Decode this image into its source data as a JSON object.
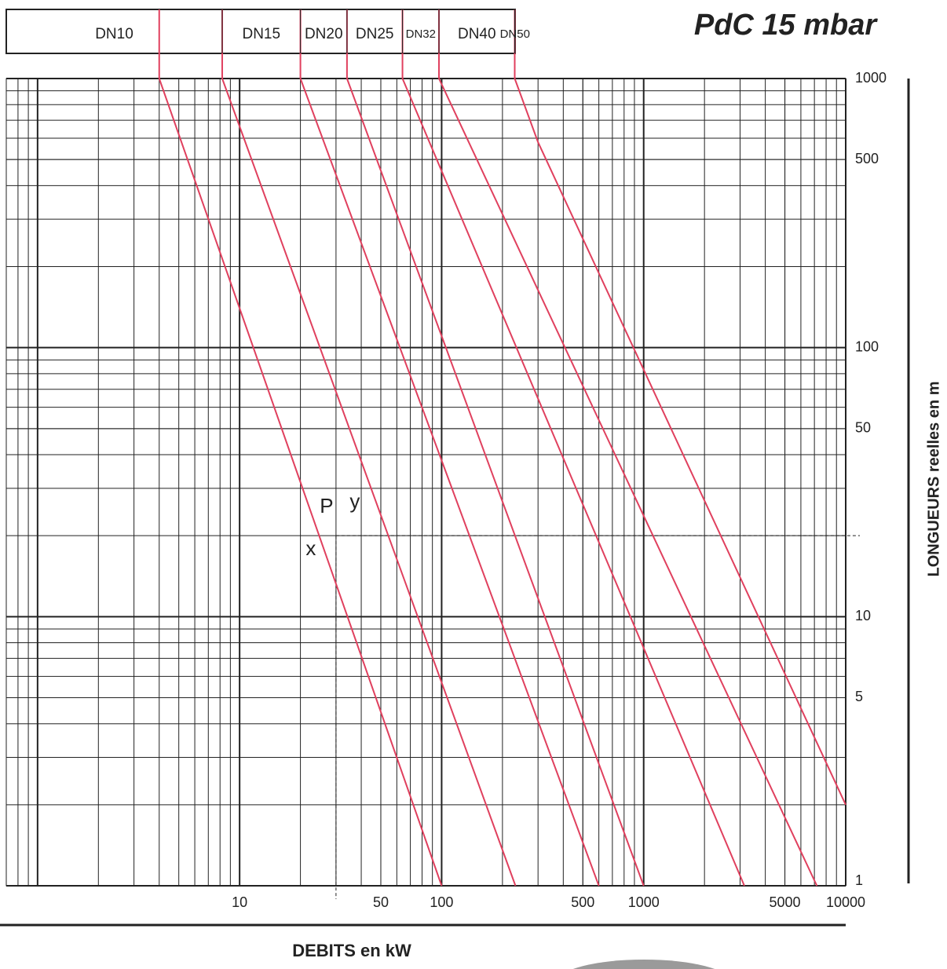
{
  "chart_data": {
    "type": "line",
    "title": "PdC  15 mbar",
    "x_label": "DEBITS en kW",
    "y_label": "LONGUEURS reelles en m",
    "x_scale": "log",
    "y_scale": "log",
    "xlim": [
      0.7,
      10000
    ],
    "ylim": [
      1,
      1000
    ],
    "xticks": [
      10,
      50,
      100,
      500,
      1000,
      5000,
      10000
    ],
    "yticks": [
      1,
      5,
      10,
      50,
      100,
      500,
      1000
    ],
    "grid": true,
    "minor_grid": true,
    "color": "#e0405e",
    "series": [
      {
        "name": "DN10",
        "x": [
          4,
          100
        ],
        "y": [
          1000,
          1
        ]
      },
      {
        "name": "DN15",
        "x": [
          8.2,
          232
        ],
        "y": [
          1000,
          1
        ]
      },
      {
        "name": "DN20",
        "x": [
          20,
          600
        ],
        "y": [
          1000,
          1
        ]
      },
      {
        "name": "DN25",
        "x": [
          34,
          1000
        ],
        "y": [
          1000,
          1
        ]
      },
      {
        "name": "DN32",
        "x": [
          64,
          3150
        ],
        "y": [
          1000,
          1
        ]
      },
      {
        "name": "DN40",
        "x": [
          97,
          7200
        ],
        "y": [
          1000,
          1
        ]
      },
      {
        "name": "DN50",
        "x": [
          230,
          300,
          10000
        ],
        "y": [
          1000,
          580,
          2
        ]
      }
    ],
    "reference_point": {
      "x": 30,
      "y": 20
    },
    "annotations": [
      "P",
      "y",
      "x"
    ]
  }
}
